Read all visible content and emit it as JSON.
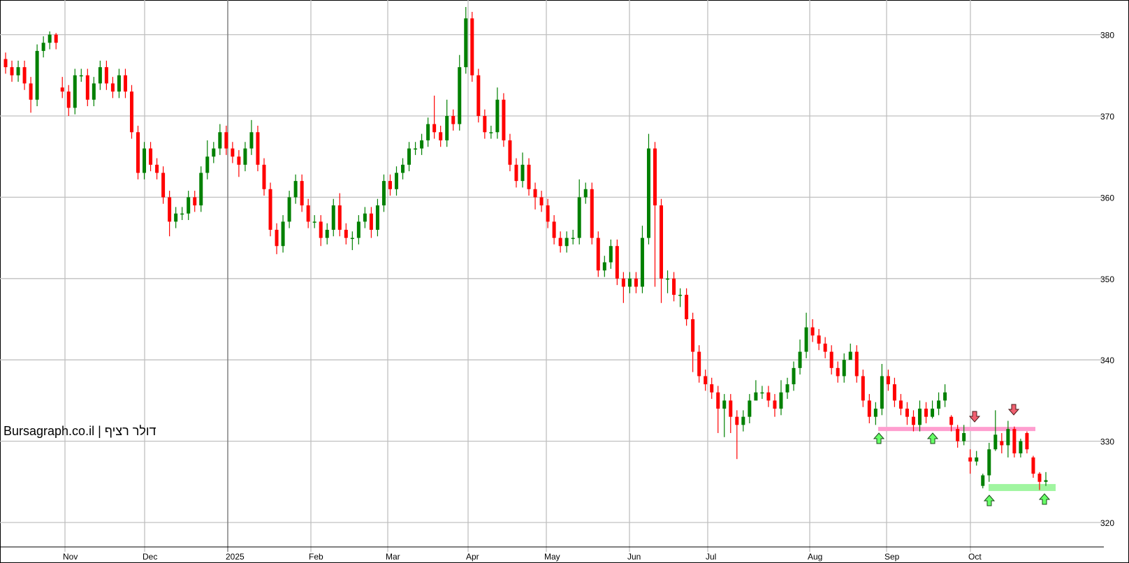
{
  "watermark": "Bursagraph.co.il | דולר רציף",
  "chart_data": {
    "type": "candlestick",
    "title": "",
    "x_tick_labels": [
      "Nov",
      "Dec",
      "2025",
      "Feb",
      "Mar",
      "Apr",
      "May",
      "Jun",
      "Jul",
      "Aug",
      "Sep",
      "Oct"
    ],
    "y_ticks": [
      320,
      330,
      340,
      350,
      360,
      370,
      380
    ],
    "ylim": [
      316.5,
      384
    ],
    "grid": true,
    "colors": {
      "up": "#008000",
      "down": "#ff0000",
      "resistance": "#ff9ecf",
      "support": "#a0f5a0",
      "up_arrow": "#66ff66",
      "down_arrow": "#f06070"
    },
    "candle_fields": [
      "open",
      "high",
      "low",
      "close"
    ],
    "candles": [
      [
        377,
        377.8,
        375.2,
        376
      ],
      [
        376,
        376.8,
        374.2,
        375
      ],
      [
        375,
        376.8,
        374.2,
        376
      ],
      [
        376,
        376.8,
        373.2,
        374
      ],
      [
        374,
        374.8,
        370.4,
        372
      ],
      [
        372,
        378.8,
        371.2,
        378
      ],
      [
        378,
        379.8,
        377.2,
        379
      ],
      [
        379,
        380.4,
        378.2,
        380
      ],
      [
        380,
        380.2,
        378.2,
        379
      ],
      [
        373.5,
        374.8,
        372.2,
        373
      ],
      [
        373,
        373.8,
        370,
        371
      ],
      [
        371,
        375.8,
        370.2,
        375
      ],
      [
        375,
        375.8,
        374.2,
        375
      ],
      [
        375,
        375.8,
        371.2,
        372
      ],
      [
        372,
        374.8,
        371.2,
        374
      ],
      [
        374,
        376.8,
        373.2,
        376
      ],
      [
        376,
        376.8,
        373.2,
        374
      ],
      [
        374,
        374.8,
        372.2,
        373
      ],
      [
        373,
        375.8,
        372.2,
        375
      ],
      [
        375,
        375.8,
        372.2,
        373
      ],
      [
        373,
        373.8,
        367.2,
        368
      ],
      [
        368,
        368.8,
        362.2,
        363
      ],
      [
        363,
        366.8,
        362.2,
        366
      ],
      [
        366,
        366.8,
        363.2,
        364
      ],
      [
        364,
        364.8,
        362.2,
        363
      ],
      [
        363,
        363.8,
        359.2,
        360
      ],
      [
        360,
        360.8,
        355.2,
        357
      ],
      [
        357,
        358.8,
        356.2,
        358
      ],
      [
        358,
        358.8,
        357.2,
        358
      ],
      [
        358,
        360.8,
        357.2,
        360
      ],
      [
        360,
        360.8,
        358.2,
        359
      ],
      [
        359,
        363.8,
        358.2,
        363
      ],
      [
        363,
        367,
        362.2,
        365
      ],
      [
        365,
        366.8,
        364.2,
        366
      ],
      [
        366,
        369,
        365.2,
        368
      ],
      [
        368,
        368.8,
        365.2,
        366
      ],
      [
        366,
        366.8,
        364.2,
        365
      ],
      [
        365,
        365.8,
        362.5,
        364
      ],
      [
        364,
        366.8,
        363.2,
        366
      ],
      [
        366,
        369.5,
        365.2,
        368
      ],
      [
        368,
        368.8,
        363.2,
        364
      ],
      [
        364,
        364.8,
        360.2,
        361
      ],
      [
        361,
        361.8,
        355.2,
        356
      ],
      [
        356,
        356.8,
        353,
        354
      ],
      [
        354,
        357.8,
        353.2,
        357
      ],
      [
        357,
        360.8,
        356.2,
        360
      ],
      [
        360,
        362.8,
        359.2,
        362
      ],
      [
        362,
        362.8,
        358.2,
        359
      ],
      [
        359,
        359.8,
        356.2,
        357
      ],
      [
        357,
        357.8,
        356.2,
        357
      ],
      [
        357,
        357.8,
        354,
        355
      ],
      [
        355,
        356.8,
        354.2,
        356
      ],
      [
        356,
        359.8,
        355.2,
        359
      ],
      [
        359,
        360.5,
        355.2,
        356
      ],
      [
        356,
        356.8,
        354.2,
        355
      ],
      [
        355,
        355.8,
        353.5,
        355
      ],
      [
        355,
        357.8,
        354.2,
        357
      ],
      [
        357,
        358.8,
        356.2,
        358
      ],
      [
        358,
        358.8,
        355,
        356
      ],
      [
        356,
        359.8,
        355.2,
        359
      ],
      [
        359,
        362.8,
        358.2,
        362
      ],
      [
        362,
        362.8,
        360.2,
        361
      ],
      [
        361,
        363.8,
        360.2,
        363
      ],
      [
        363,
        364.8,
        362.2,
        364
      ],
      [
        364,
        366.8,
        363.2,
        366
      ],
      [
        366,
        366.8,
        365.2,
        366
      ],
      [
        366,
        367.8,
        365.2,
        367
      ],
      [
        367,
        369.8,
        366.2,
        369
      ],
      [
        369,
        372.5,
        367.2,
        368
      ],
      [
        368,
        368.8,
        366.2,
        367
      ],
      [
        367,
        372,
        366.2,
        370
      ],
      [
        370,
        370.8,
        368.2,
        369
      ],
      [
        369,
        377.5,
        368.2,
        376
      ],
      [
        376,
        383.4,
        375.2,
        382
      ],
      [
        382,
        382.8,
        374.2,
        375
      ],
      [
        375,
        375.8,
        369.2,
        370
      ],
      [
        370,
        370.8,
        367.2,
        368
      ],
      [
        368,
        368.8,
        367.2,
        368
      ],
      [
        368,
        373.5,
        367.2,
        372
      ],
      [
        372,
        372.8,
        366.2,
        367
      ],
      [
        367,
        367.8,
        363.2,
        364
      ],
      [
        364,
        364.8,
        361.2,
        362
      ],
      [
        362,
        365.5,
        361.2,
        364
      ],
      [
        364,
        364.8,
        360.2,
        361
      ],
      [
        361,
        361.8,
        358.5,
        360
      ],
      [
        360,
        360.8,
        358.2,
        359
      ],
      [
        359,
        359.8,
        356.2,
        357
      ],
      [
        357,
        357.8,
        354.2,
        355
      ],
      [
        355,
        355.8,
        353.2,
        354
      ],
      [
        354,
        355.8,
        353.2,
        355
      ],
      [
        355,
        356,
        354.2,
        355
      ],
      [
        355,
        362.2,
        354.2,
        360
      ],
      [
        360,
        361.8,
        359.2,
        361
      ],
      [
        361,
        361.8,
        354.2,
        355
      ],
      [
        355,
        355.8,
        350.2,
        351
      ],
      [
        351,
        352.8,
        350.2,
        352
      ],
      [
        352,
        354.8,
        351.2,
        354
      ],
      [
        354,
        354.8,
        349.2,
        350
      ],
      [
        350,
        350.8,
        347,
        349
      ],
      [
        349,
        350.8,
        348.2,
        350
      ],
      [
        350,
        350.8,
        348.2,
        349
      ],
      [
        349,
        356.5,
        348.2,
        355
      ],
      [
        355,
        367.8,
        354.2,
        366
      ],
      [
        366,
        366.8,
        349,
        359
      ],
      [
        359,
        359.8,
        347,
        350
      ],
      [
        350,
        351,
        348.2,
        350
      ],
      [
        350,
        350.8,
        347.2,
        348
      ],
      [
        348,
        348.8,
        346.5,
        348
      ],
      [
        348,
        348.8,
        344.2,
        345
      ],
      [
        345,
        345.8,
        338.5,
        341
      ],
      [
        341,
        341.8,
        337.2,
        338
      ],
      [
        338,
        338.8,
        336.2,
        337
      ],
      [
        337,
        337.8,
        335.2,
        336
      ],
      [
        336,
        336.8,
        331,
        334
      ],
      [
        334,
        335.8,
        330.5,
        335
      ],
      [
        335,
        335.8,
        331,
        333
      ],
      [
        333,
        333.8,
        327.8,
        332
      ],
      [
        332,
        333.8,
        331.2,
        333
      ],
      [
        333,
        335.8,
        332.2,
        335
      ],
      [
        335,
        337.5,
        335.2,
        336
      ],
      [
        336,
        336.8,
        335.2,
        336
      ],
      [
        336,
        336.8,
        334.2,
        335
      ],
      [
        335,
        335.8,
        333,
        334
      ],
      [
        334,
        337.5,
        333.2,
        336
      ],
      [
        336,
        337.8,
        335.2,
        337
      ],
      [
        337,
        339.8,
        336.2,
        339
      ],
      [
        339,
        342.5,
        338.2,
        341
      ],
      [
        341,
        345.8,
        340.2,
        344
      ],
      [
        344,
        345,
        342.2,
        343
      ],
      [
        343,
        343.8,
        341.2,
        342
      ],
      [
        342,
        342.8,
        340.2,
        341
      ],
      [
        341,
        341.8,
        338.2,
        339
      ],
      [
        339,
        339.8,
        337.2,
        338
      ],
      [
        338,
        340.8,
        337.2,
        340
      ],
      [
        340,
        342,
        340.2,
        341
      ],
      [
        341,
        341.8,
        337.2,
        338
      ],
      [
        338,
        338.8,
        334.2,
        335
      ],
      [
        335,
        335.8,
        332.2,
        333
      ],
      [
        333,
        334.8,
        332,
        334
      ],
      [
        334,
        339.5,
        333.2,
        338
      ],
      [
        338,
        338.8,
        336.2,
        337
      ],
      [
        337,
        337.8,
        334.2,
        335
      ],
      [
        335,
        335.8,
        333.2,
        334
      ],
      [
        334,
        334.8,
        332,
        333
      ],
      [
        333,
        333.8,
        331.2,
        332
      ],
      [
        332,
        335,
        331.2,
        334
      ],
      [
        334,
        334.8,
        332.2,
        333
      ],
      [
        333,
        335,
        332.8,
        334
      ],
      [
        334,
        336,
        333.2,
        335
      ],
      [
        335,
        337,
        334.2,
        336
      ],
      [
        333,
        333.2,
        331.2,
        332
      ],
      [
        331.5,
        332,
        329.2,
        330
      ],
      [
        330,
        332,
        329.5,
        331
      ],
      [
        328,
        329,
        326,
        327.5
      ],
      [
        327.5,
        328.8,
        327,
        328
      ],
      [
        324.5,
        326,
        324.2,
        325.8
      ],
      [
        325.8,
        329.8,
        325,
        329
      ],
      [
        329,
        333.8,
        328.8,
        330.8
      ],
      [
        330,
        331,
        328.5,
        329.5
      ],
      [
        329.5,
        332.5,
        328,
        331.5
      ],
      [
        331.5,
        331.8,
        328,
        328.5
      ],
      [
        328.5,
        330.3,
        328,
        330
      ],
      [
        331,
        331.2,
        328.5,
        329
      ],
      [
        328,
        328.2,
        325.5,
        326
      ],
      [
        326,
        326.2,
        324,
        325
      ],
      [
        325,
        326.2,
        324.5,
        325.2
      ]
    ],
    "annotations": {
      "resistance_level": 331.5,
      "support_level": 324.3,
      "up_arrows": 4,
      "down_arrows": 2
    }
  }
}
